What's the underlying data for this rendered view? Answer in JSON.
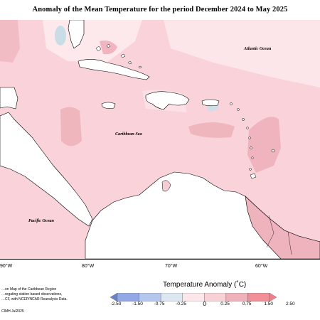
{
  "title": "Anomaly of the Mean Temperature for the period December 2024 to May 2025",
  "map": {
    "labels": {
      "atlantic": "Atlantic Ocean",
      "caribbean": "Caribbean Sea",
      "pacific": "Pacific Ocean"
    },
    "longitudes": [
      "90°W",
      "80°W",
      "70°W",
      "60°W"
    ],
    "land_color": "#ffffff",
    "sea_base_color": "#f8cfd5"
  },
  "credit": {
    "line1": "…on Map of the Caribbean Region",
    "line2": "…regating station based observations,",
    "line3": "…CF, with NCEP/NCAR Reanalysis Data.",
    "line4": "CIMH Jul2025"
  },
  "legend": {
    "title": "Temperature Anomaly (˚C)",
    "ticks": [
      "-2.50",
      "-1.50",
      "-0.75",
      "-0.25",
      "0",
      "0.25",
      "0.75",
      "1.50",
      "2.50"
    ],
    "colors": [
      "#6a82c8",
      "#93a8e4",
      "#b5c6ef",
      "#dce7f2",
      "#fbe7ea",
      "#f8d1d6",
      "#efb2ba",
      "#f28e98",
      "#f47d8c"
    ]
  }
}
